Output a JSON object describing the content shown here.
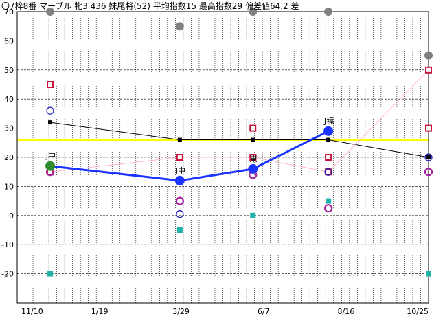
{
  "chart_data": {
    "type": "line",
    "title": "〇7枠8番 マーブル 牝3 436 妹尾将(52) 平均指数15 最高指数29 偏差値64.2 差",
    "x_tick_labels": [
      "11/10",
      "1/19",
      "3/29",
      "6/7",
      "8/16",
      "10/25"
    ],
    "y_tick_labels": [
      "70",
      "60",
      "50",
      "40",
      "30",
      "20",
      "10",
      "0",
      "-10",
      "-20"
    ],
    "ylim": [
      -30,
      70
    ],
    "reference_line": 26,
    "grid": true,
    "races": [
      {
        "date": "12/08",
        "label": "J中",
        "index": 17
      },
      {
        "date": "03/28",
        "label": "J中",
        "index": 12
      },
      {
        "date": "05/29",
        "label": "東",
        "index": 16
      },
      {
        "date": "08/01",
        "label": "J福",
        "index": 29
      }
    ],
    "series": [
      {
        "key": "black",
        "color": "#000000",
        "marker": "small-square",
        "points": [
          [
            "12/08",
            32
          ],
          [
            "03/28",
            26
          ],
          [
            "05/29",
            26
          ],
          [
            "08/01",
            26
          ],
          [
            "10/25",
            20
          ]
        ]
      },
      {
        "key": "pink",
        "color": "#ffb6c1",
        "marker": "square-outline",
        "marker_color": "#c8143c",
        "points": [
          [
            "12/08",
            15
          ],
          [
            "03/28",
            20
          ],
          [
            "05/29",
            20
          ],
          [
            "08/01",
            15
          ],
          [
            "10/25",
            50
          ]
        ]
      },
      {
        "key": "red-squares",
        "color": "#c8143c",
        "marker": "square-outline",
        "line": false,
        "points": [
          [
            "12/08",
            45
          ],
          [
            "03/28",
            20
          ],
          [
            "05/29",
            30
          ],
          [
            "08/01",
            20
          ],
          [
            "10/25",
            30
          ]
        ]
      },
      {
        "key": "gray",
        "color": "#808080",
        "marker": "filled-circle",
        "line": false,
        "points": [
          [
            "12/08",
            70
          ],
          [
            "03/28",
            65
          ],
          [
            "05/29",
            70
          ],
          [
            "08/01",
            70
          ],
          [
            "10/25",
            55
          ]
        ]
      },
      {
        "key": "teal",
        "color": "#20b2aa",
        "marker": "filled-square",
        "line": false,
        "points": [
          [
            "12/08",
            -20
          ],
          [
            "03/28",
            -5
          ],
          [
            "05/29",
            0
          ],
          [
            "08/01",
            5
          ],
          [
            "10/25",
            -20
          ]
        ]
      },
      {
        "key": "blue-open",
        "color": "#1e1eb4",
        "marker": "open-circle",
        "line": false,
        "points": [
          [
            "12/08",
            36
          ],
          [
            "03/28",
            0.5
          ],
          [
            "05/29",
            14
          ],
          [
            "08/01",
            15
          ],
          [
            "10/25",
            20
          ]
        ]
      },
      {
        "key": "purple",
        "color": "#a020a0",
        "marker": "open-circle-thick",
        "line": false,
        "points": [
          [
            "12/08",
            15
          ],
          [
            "03/28",
            5
          ],
          [
            "05/29",
            14
          ],
          [
            "08/01",
            2.5
          ],
          [
            "10/25",
            15
          ]
        ]
      },
      {
        "key": "index",
        "color": "#1a33ff",
        "marker": "big-filled-circle",
        "line_width": 3,
        "points": [
          [
            "12/08",
            17
          ],
          [
            "03/28",
            12
          ],
          [
            "05/29",
            16
          ],
          [
            "08/01",
            29
          ]
        ]
      }
    ],
    "first_point_color": "#2e8b2e"
  }
}
